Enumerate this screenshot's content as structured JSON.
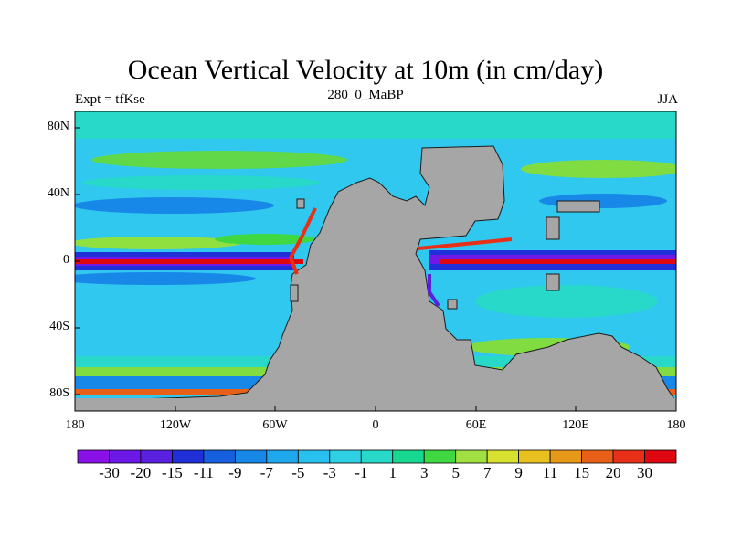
{
  "title": "Ocean Vertical Velocity at 10m (in cm/day)",
  "subtitle_left": "Expt = tfKse",
  "subtitle_center": "280_0_MaBP",
  "subtitle_right": "JJA",
  "lat_labels": [
    "80N",
    "40N",
    "0",
    "40S",
    "80S"
  ],
  "lon_labels": [
    "180",
    "120W",
    "60W",
    "0",
    "60E",
    "120E",
    "180"
  ],
  "colorbar": {
    "labels": [
      "-30",
      "-20",
      "-15",
      "-11",
      "-9",
      "-7",
      "-5",
      "-3",
      "-1",
      "1",
      "3",
      "5",
      "7",
      "9",
      "11",
      "15",
      "20",
      "30"
    ],
    "colors": [
      "#8a10e8",
      "#6c18e6",
      "#5a20e0",
      "#2030d8",
      "#1660e0",
      "#1888e8",
      "#20a8ee",
      "#28c0ee",
      "#30d0e4",
      "#28d8c8",
      "#18d890",
      "#40d840",
      "#a0e040",
      "#d8e030",
      "#e8c020",
      "#e89818",
      "#e86018",
      "#e83018",
      "#e00810"
    ]
  },
  "colors": {
    "ocean_base": "#30c8ee",
    "land": "#a6a6a6",
    "coast": "#1a1a1a"
  }
}
